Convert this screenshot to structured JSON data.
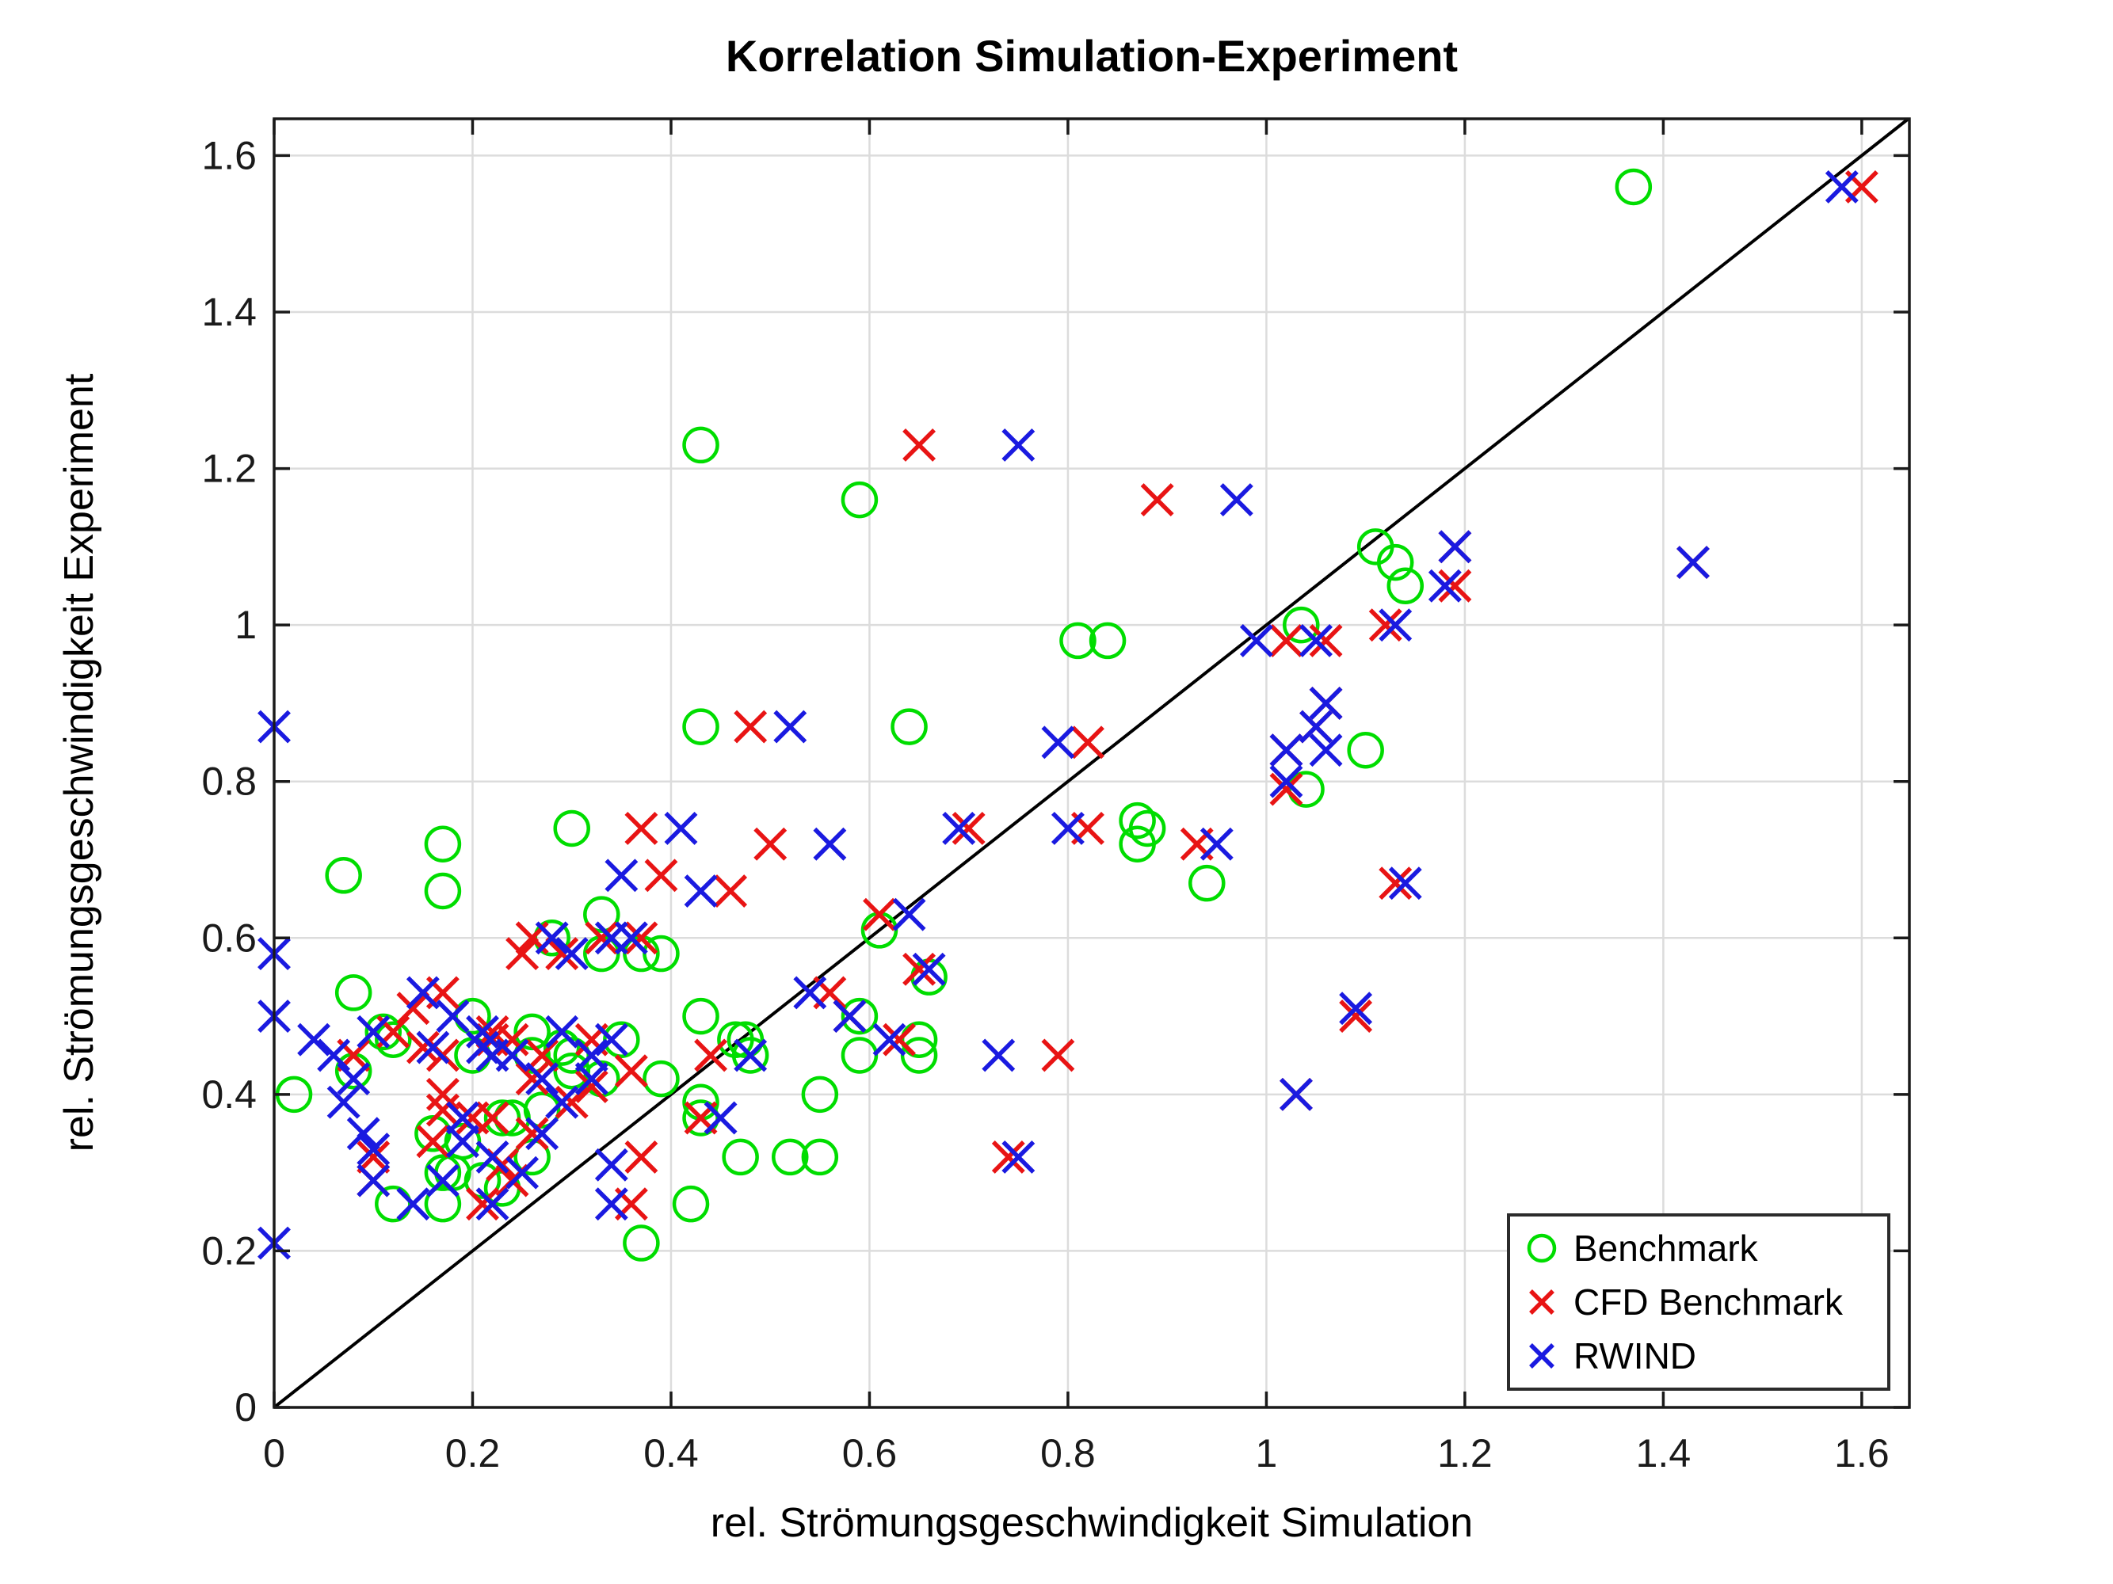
{
  "page": {
    "background": "#ffffff"
  },
  "chart_data": {
    "type": "scatter",
    "title": "Korrelation Simulation-Experiment",
    "xlabel": "rel. Strömungsgeschwindigkeit Simulation",
    "ylabel": "rel. Strömungsgeschwindigkeit Experiment",
    "xlim": [
      0,
      1.648
    ],
    "ylim": [
      0,
      1.647
    ],
    "xticks": [
      0,
      0.2,
      0.4,
      0.6,
      0.8,
      1.0,
      1.2,
      1.4,
      1.6
    ],
    "yticks": [
      0,
      0.2,
      0.4,
      0.6,
      0.8,
      1.0,
      1.2,
      1.4,
      1.6
    ],
    "x_tick_labels": [
      "0",
      "0.2",
      "0.4",
      "0.6",
      "0.8",
      "1",
      "1.2",
      "1.4",
      "1.6"
    ],
    "y_tick_labels": [
      "0",
      "0.2",
      "0.4",
      "0.6",
      "0.8",
      "1",
      "1.2",
      "1.4",
      "1.6"
    ],
    "grid": true,
    "grid_color": "#dcdcdc",
    "axis_color": "#1a1a1a",
    "identity_line": true,
    "identity_line_color": "#000000",
    "legend_position": "lower right",
    "series": [
      {
        "name": "Benchmark",
        "marker": "circle",
        "color": "#00dd00",
        "points": [
          [
            0.02,
            0.4
          ],
          [
            0.07,
            0.68
          ],
          [
            0.08,
            0.53
          ],
          [
            0.08,
            0.43
          ],
          [
            0.11,
            0.48
          ],
          [
            0.12,
            0.47
          ],
          [
            0.12,
            0.26
          ],
          [
            0.16,
            0.35
          ],
          [
            0.17,
            0.72
          ],
          [
            0.17,
            0.66
          ],
          [
            0.17,
            0.3
          ],
          [
            0.17,
            0.26
          ],
          [
            0.18,
            0.3
          ],
          [
            0.19,
            0.34
          ],
          [
            0.2,
            0.5
          ],
          [
            0.2,
            0.45
          ],
          [
            0.21,
            0.29
          ],
          [
            0.23,
            0.37
          ],
          [
            0.23,
            0.28
          ],
          [
            0.24,
            0.37
          ],
          [
            0.26,
            0.48
          ],
          [
            0.26,
            0.45
          ],
          [
            0.26,
            0.32
          ],
          [
            0.27,
            0.38
          ],
          [
            0.28,
            0.6
          ],
          [
            0.29,
            0.46
          ],
          [
            0.3,
            0.74
          ],
          [
            0.3,
            0.45
          ],
          [
            0.3,
            0.43
          ],
          [
            0.33,
            0.63
          ],
          [
            0.33,
            0.58
          ],
          [
            0.33,
            0.42
          ],
          [
            0.35,
            0.47
          ],
          [
            0.37,
            0.58
          ],
          [
            0.37,
            0.21
          ],
          [
            0.39,
            0.58
          ],
          [
            0.39,
            0.42
          ],
          [
            0.42,
            0.26
          ],
          [
            0.43,
            1.23
          ],
          [
            0.43,
            0.87
          ],
          [
            0.43,
            0.5
          ],
          [
            0.43,
            0.39
          ],
          [
            0.43,
            0.37
          ],
          [
            0.465,
            0.47
          ],
          [
            0.475,
            0.47
          ],
          [
            0.48,
            0.45
          ],
          [
            0.47,
            0.32
          ],
          [
            0.52,
            0.32
          ],
          [
            0.55,
            0.4
          ],
          [
            0.55,
            0.32
          ],
          [
            0.59,
            1.16
          ],
          [
            0.59,
            0.5
          ],
          [
            0.59,
            0.45
          ],
          [
            0.61,
            0.61
          ],
          [
            0.64,
            0.87
          ],
          [
            0.65,
            0.47
          ],
          [
            0.65,
            0.45
          ],
          [
            0.66,
            0.55
          ],
          [
            0.81,
            0.98
          ],
          [
            0.84,
            0.98
          ],
          [
            0.87,
            0.75
          ],
          [
            0.87,
            0.72
          ],
          [
            0.88,
            0.74
          ],
          [
            0.94,
            0.67
          ],
          [
            1.035,
            1.0
          ],
          [
            1.04,
            0.79
          ],
          [
            1.1,
            0.84
          ],
          [
            1.11,
            1.1
          ],
          [
            1.13,
            1.08
          ],
          [
            1.14,
            1.05
          ],
          [
            1.37,
            1.56
          ]
        ]
      },
      {
        "name": "CFD Benchmark",
        "marker": "x",
        "color": "#e81414",
        "points": [
          [
            0.08,
            0.45
          ],
          [
            0.1,
            0.32
          ],
          [
            0.1,
            0.29
          ],
          [
            0.12,
            0.48
          ],
          [
            0.14,
            0.51
          ],
          [
            0.15,
            0.46
          ],
          [
            0.16,
            0.34
          ],
          [
            0.17,
            0.53
          ],
          [
            0.17,
            0.45
          ],
          [
            0.17,
            0.4
          ],
          [
            0.17,
            0.38
          ],
          [
            0.2,
            0.37
          ],
          [
            0.21,
            0.26
          ],
          [
            0.22,
            0.48
          ],
          [
            0.22,
            0.47
          ],
          [
            0.22,
            0.37
          ],
          [
            0.23,
            0.31
          ],
          [
            0.24,
            0.47
          ],
          [
            0.24,
            0.29
          ],
          [
            0.25,
            0.58
          ],
          [
            0.26,
            0.6
          ],
          [
            0.26,
            0.42
          ],
          [
            0.26,
            0.35
          ],
          [
            0.27,
            0.45
          ],
          [
            0.29,
            0.58
          ],
          [
            0.3,
            0.39
          ],
          [
            0.32,
            0.47
          ],
          [
            0.32,
            0.41
          ],
          [
            0.33,
            0.6
          ],
          [
            0.36,
            0.43
          ],
          [
            0.36,
            0.26
          ],
          [
            0.37,
            0.74
          ],
          [
            0.37,
            0.6
          ],
          [
            0.37,
            0.32
          ],
          [
            0.39,
            0.68
          ],
          [
            0.43,
            0.37
          ],
          [
            0.44,
            0.45
          ],
          [
            0.46,
            0.66
          ],
          [
            0.48,
            0.87
          ],
          [
            0.5,
            0.72
          ],
          [
            0.56,
            0.53
          ],
          [
            0.58,
            0.5
          ],
          [
            0.61,
            0.63
          ],
          [
            0.63,
            0.47
          ],
          [
            0.65,
            1.23
          ],
          [
            0.65,
            0.56
          ],
          [
            0.7,
            0.74
          ],
          [
            0.74,
            0.32
          ],
          [
            0.79,
            0.45
          ],
          [
            0.82,
            0.85
          ],
          [
            0.82,
            0.74
          ],
          [
            0.89,
            1.16
          ],
          [
            0.93,
            0.72
          ],
          [
            1.02,
            0.98
          ],
          [
            1.02,
            0.84
          ],
          [
            1.02,
            0.79
          ],
          [
            1.03,
            0.4
          ],
          [
            1.05,
            0.87
          ],
          [
            1.06,
            0.98
          ],
          [
            1.06,
            0.9
          ],
          [
            1.09,
            0.5
          ],
          [
            1.12,
            1.0
          ],
          [
            1.13,
            0.67
          ],
          [
            1.19,
            1.1
          ],
          [
            1.19,
            1.05
          ],
          [
            1.43,
            1.08
          ],
          [
            1.6,
            1.56
          ]
        ]
      },
      {
        "name": "RWIND",
        "marker": "x",
        "color": "#1a1ae0",
        "points": [
          [
            0.0,
            0.87
          ],
          [
            0.0,
            0.58
          ],
          [
            0.0,
            0.5
          ],
          [
            0.0,
            0.21
          ],
          [
            0.04,
            0.47
          ],
          [
            0.06,
            0.45
          ],
          [
            0.07,
            0.39
          ],
          [
            0.08,
            0.42
          ],
          [
            0.09,
            0.35
          ],
          [
            0.1,
            0.48
          ],
          [
            0.1,
            0.33
          ],
          [
            0.1,
            0.29
          ],
          [
            0.14,
            0.26
          ],
          [
            0.15,
            0.53
          ],
          [
            0.16,
            0.46
          ],
          [
            0.17,
            0.29
          ],
          [
            0.18,
            0.5
          ],
          [
            0.19,
            0.37
          ],
          [
            0.19,
            0.34
          ],
          [
            0.21,
            0.48
          ],
          [
            0.21,
            0.46
          ],
          [
            0.22,
            0.45
          ],
          [
            0.22,
            0.32
          ],
          [
            0.22,
            0.26
          ],
          [
            0.24,
            0.45
          ],
          [
            0.25,
            0.3
          ],
          [
            0.27,
            0.42
          ],
          [
            0.27,
            0.35
          ],
          [
            0.28,
            0.6
          ],
          [
            0.29,
            0.48
          ],
          [
            0.29,
            0.39
          ],
          [
            0.3,
            0.58
          ],
          [
            0.32,
            0.45
          ],
          [
            0.32,
            0.42
          ],
          [
            0.34,
            0.6
          ],
          [
            0.34,
            0.47
          ],
          [
            0.34,
            0.31
          ],
          [
            0.34,
            0.26
          ],
          [
            0.35,
            0.68
          ],
          [
            0.36,
            0.6
          ],
          [
            0.41,
            0.74
          ],
          [
            0.43,
            0.66
          ],
          [
            0.45,
            0.37
          ],
          [
            0.48,
            0.45
          ],
          [
            0.52,
            0.87
          ],
          [
            0.54,
            0.53
          ],
          [
            0.56,
            0.72
          ],
          [
            0.58,
            0.5
          ],
          [
            0.62,
            0.47
          ],
          [
            0.64,
            0.63
          ],
          [
            0.66,
            0.56
          ],
          [
            0.69,
            0.74
          ],
          [
            0.73,
            0.45
          ],
          [
            0.75,
            1.23
          ],
          [
            0.75,
            0.32
          ],
          [
            0.79,
            0.85
          ],
          [
            0.8,
            0.74
          ],
          [
            0.95,
            0.72
          ],
          [
            0.97,
            1.16
          ],
          [
            0.99,
            0.98
          ],
          [
            1.02,
            0.84
          ],
          [
            1.02,
            0.8
          ],
          [
            1.03,
            0.4
          ],
          [
            1.05,
            0.98
          ],
          [
            1.05,
            0.87
          ],
          [
            1.06,
            0.9
          ],
          [
            1.06,
            0.84
          ],
          [
            1.09,
            0.51
          ],
          [
            1.13,
            1.0
          ],
          [
            1.14,
            0.67
          ],
          [
            1.18,
            1.05
          ],
          [
            1.19,
            1.1
          ],
          [
            1.43,
            1.08
          ],
          [
            1.58,
            1.56
          ]
        ]
      }
    ],
    "legend": {
      "items": [
        {
          "label": "Benchmark"
        },
        {
          "label": "CFD Benchmark"
        },
        {
          "label": "RWIND"
        }
      ]
    }
  }
}
